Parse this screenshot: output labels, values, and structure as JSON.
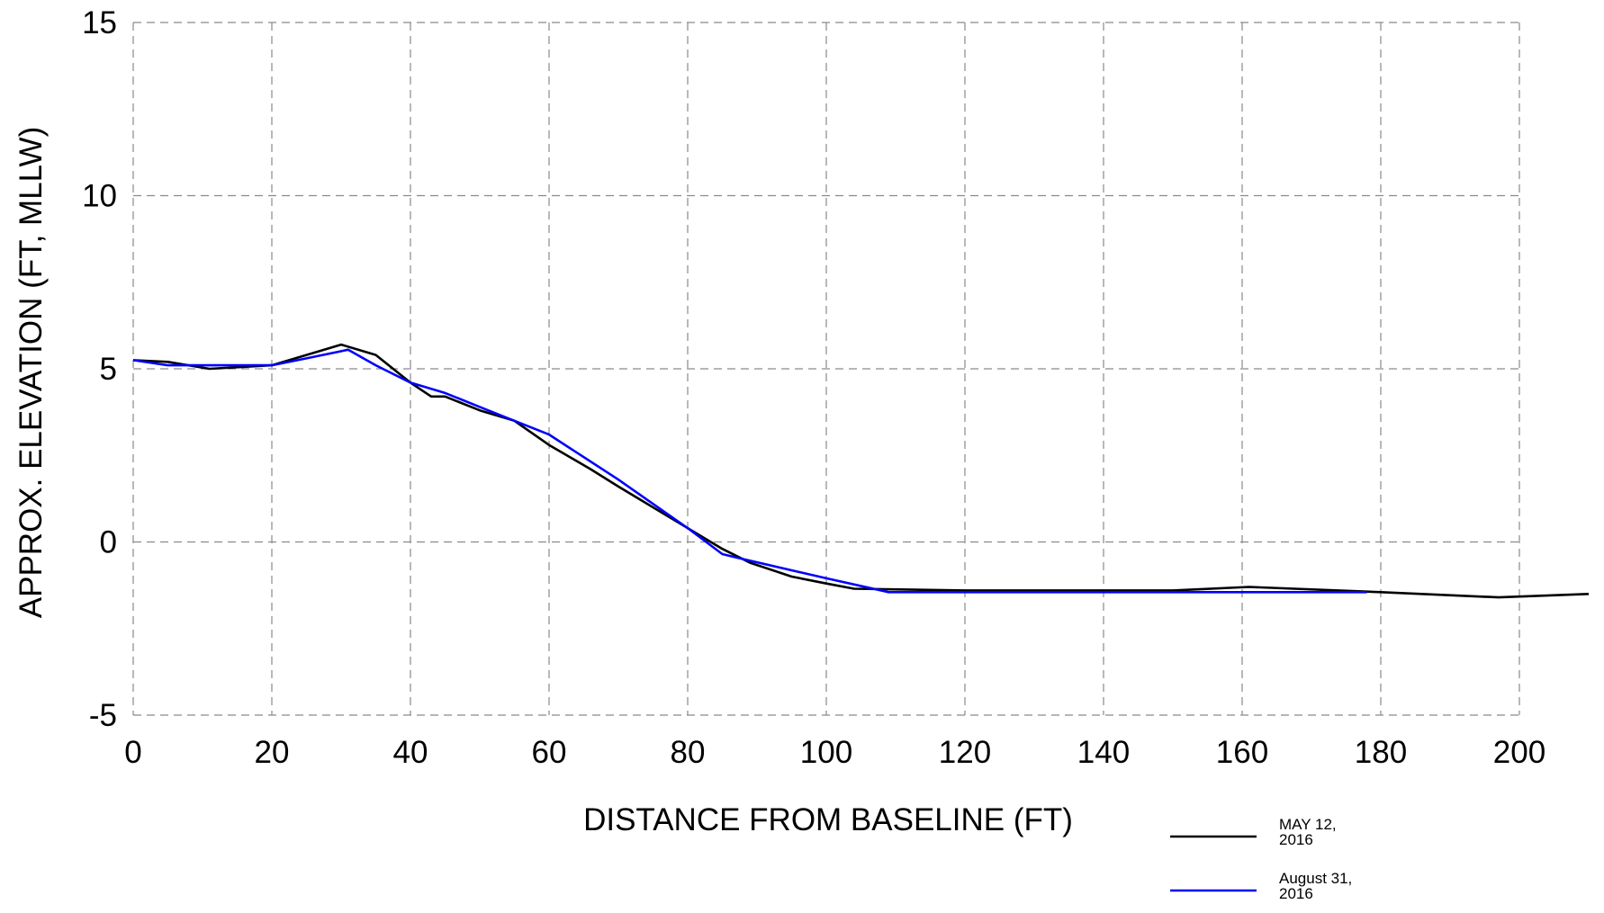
{
  "chart_data": {
    "type": "line",
    "title": "",
    "xlabel": "DISTANCE FROM BASELINE (FT)",
    "ylabel": "APPROX. ELEVATION (FT, MLLW)",
    "xlim": [
      0,
      210
    ],
    "ylim": [
      -5,
      15
    ],
    "xticks": [
      0,
      20,
      40,
      60,
      80,
      100,
      120,
      140,
      160,
      180,
      200
    ],
    "yticks": [
      -5,
      0,
      5,
      10,
      15
    ],
    "grid": true,
    "legend_position": "bottom-right",
    "series": [
      {
        "name": "MAY 12, 2016",
        "color": "#000000",
        "points": [
          [
            0,
            5.25
          ],
          [
            5,
            5.2
          ],
          [
            11,
            5.0
          ],
          [
            20,
            5.1
          ],
          [
            25,
            5.4
          ],
          [
            30,
            5.7
          ],
          [
            35,
            5.4
          ],
          [
            40,
            4.6
          ],
          [
            43,
            4.2
          ],
          [
            45,
            4.2
          ],
          [
            50,
            3.8
          ],
          [
            55,
            3.5
          ],
          [
            60,
            2.8
          ],
          [
            66,
            2.1
          ],
          [
            70,
            1.6
          ],
          [
            75,
            1.0
          ],
          [
            80,
            0.4
          ],
          [
            85,
            -0.2
          ],
          [
            89,
            -0.6
          ],
          [
            95,
            -1.0
          ],
          [
            100,
            -1.2
          ],
          [
            104,
            -1.35
          ],
          [
            120,
            -1.4
          ],
          [
            140,
            -1.4
          ],
          [
            150,
            -1.4
          ],
          [
            161,
            -1.3
          ],
          [
            180,
            -1.45
          ],
          [
            197,
            -1.6
          ],
          [
            210,
            -1.5
          ]
        ]
      },
      {
        "name": "August 31, 2016",
        "color": "#0000ff",
        "points": [
          [
            0,
            5.25
          ],
          [
            5,
            5.1
          ],
          [
            10,
            5.1
          ],
          [
            20,
            5.1
          ],
          [
            25,
            5.3
          ],
          [
            31,
            5.55
          ],
          [
            35,
            5.1
          ],
          [
            40,
            4.6
          ],
          [
            45,
            4.3
          ],
          [
            50,
            3.9
          ],
          [
            55,
            3.5
          ],
          [
            60,
            3.1
          ],
          [
            70,
            1.8
          ],
          [
            80,
            0.4
          ],
          [
            85,
            -0.35
          ],
          [
            87,
            -0.45
          ],
          [
            100,
            -1.05
          ],
          [
            109,
            -1.45
          ],
          [
            120,
            -1.45
          ],
          [
            140,
            -1.45
          ],
          [
            160,
            -1.45
          ],
          [
            178,
            -1.45
          ]
        ]
      }
    ]
  }
}
